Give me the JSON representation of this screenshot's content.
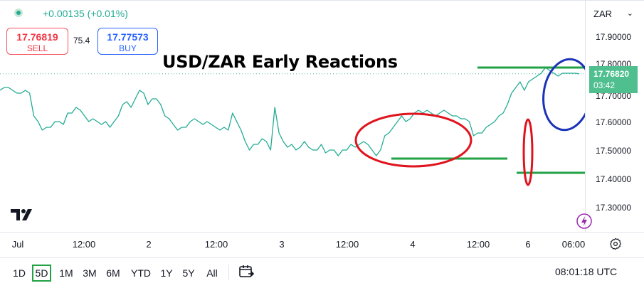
{
  "header": {
    "change": "+0.00135 (+0.01%)",
    "sell": {
      "price": "17.76819",
      "label": "SELL"
    },
    "buy": {
      "price": "17.77573",
      "label": "BUY"
    },
    "spread": "75.4",
    "currency": "ZAR"
  },
  "price_scale": {
    "labels": [
      "17.90000",
      "17.80000",
      "17.70000",
      "17.60000",
      "17.50000",
      "17.40000",
      "17.30000"
    ],
    "current_price": "17.76820",
    "countdown": "03:42"
  },
  "time_axis": [
    "Jul",
    "12:00",
    "2",
    "12:00",
    "3",
    "12:00",
    "4",
    "12:00",
    "6",
    "06:00"
  ],
  "toolbar": {
    "ranges": [
      "1D",
      "5D",
      "1M",
      "3M",
      "6M",
      "YTD",
      "1Y",
      "5Y",
      "All"
    ],
    "active_range": "5D",
    "clock": "08:01:18 UTC"
  },
  "chart_data": {
    "type": "line",
    "title": "USD/ZAR Early Reactions",
    "xlabel": "",
    "ylabel": "",
    "ylim": [
      17.25,
      17.95
    ],
    "x_ticks": [
      "Jul",
      "12:00",
      "2",
      "12:00",
      "3",
      "12:00",
      "4",
      "12:00",
      "6",
      "06:00"
    ],
    "y_ticks": [
      17.3,
      17.4,
      17.5,
      17.6,
      17.7,
      17.8,
      17.9
    ],
    "grid": false,
    "line_color": "#22ab94",
    "series": [
      {
        "x": [
          0,
          0.3,
          0.6,
          0.9,
          1.2,
          1.5,
          1.8,
          2.1,
          2.4,
          2.7,
          3.0,
          3.3,
          3.6,
          3.9,
          4.2,
          4.5,
          4.8,
          5.1,
          5.4,
          5.7,
          6.0,
          6.3,
          6.6,
          6.9,
          7.2,
          7.5,
          7.8,
          8.1,
          8.4,
          8.7,
          9.0,
          9.3,
          9.6,
          9.9,
          10.2,
          10.5,
          10.8,
          11.1,
          11.4,
          11.7,
          12.0,
          12.3,
          12.6,
          12.9,
          13.2,
          13.5,
          13.8,
          14.1,
          14.4,
          14.7,
          15.0,
          15.3,
          15.6,
          15.9,
          16.2,
          16.5,
          16.8,
          17.1,
          17.4,
          17.7,
          18.0,
          18.3,
          18.6,
          18.9,
          19.2,
          19.5,
          19.8,
          20.1,
          20.4,
          20.7,
          21.0,
          21.3,
          21.6,
          21.9,
          22.2,
          22.5,
          22.8,
          23.1,
          23.4,
          23.7,
          24.0,
          24.3,
          24.6,
          24.9,
          25.2,
          25.5,
          25.8,
          26.1,
          26.4,
          26.7,
          27.0,
          27.3,
          27.6,
          27.9,
          28.2,
          28.5,
          28.8,
          29.1,
          29.4,
          29.7,
          30.0,
          30.3,
          30.6,
          30.9,
          31.2,
          31.5,
          31.8,
          32.1,
          32.4,
          32.7,
          33.0,
          33.3,
          33.6,
          33.9,
          34.2,
          34.5,
          34.8,
          35.1,
          35.4,
          35.7,
          36.0,
          36.3,
          36.6,
          36.9,
          37.2,
          37.5,
          37.8,
          38.1,
          38.4,
          38.7,
          39.0,
          39.3,
          39.6,
          39.9,
          40.2,
          40.5,
          40.8,
          41.1
        ],
        "values": [
          17.71,
          17.72,
          17.72,
          17.71,
          17.7,
          17.7,
          17.71,
          17.7,
          17.62,
          17.6,
          17.57,
          17.58,
          17.58,
          17.6,
          17.6,
          17.59,
          17.63,
          17.63,
          17.65,
          17.64,
          17.62,
          17.6,
          17.61,
          17.6,
          17.59,
          17.6,
          17.58,
          17.6,
          17.62,
          17.66,
          17.67,
          17.65,
          17.68,
          17.71,
          17.7,
          17.66,
          17.68,
          17.68,
          17.66,
          17.62,
          17.61,
          17.59,
          17.57,
          17.58,
          17.58,
          17.6,
          17.61,
          17.6,
          17.59,
          17.6,
          17.59,
          17.58,
          17.57,
          17.58,
          17.57,
          17.63,
          17.6,
          17.57,
          17.53,
          17.5,
          17.52,
          17.52,
          17.54,
          17.53,
          17.5,
          17.65,
          17.56,
          17.53,
          17.51,
          17.52,
          17.5,
          17.51,
          17.53,
          17.51,
          17.5,
          17.5,
          17.52,
          17.49,
          17.5,
          17.5,
          17.48,
          17.5,
          17.5,
          17.52,
          17.51,
          17.52,
          17.53,
          17.52,
          17.5,
          17.48,
          17.5,
          17.55,
          17.56,
          17.58,
          17.6,
          17.62,
          17.6,
          17.61,
          17.63,
          17.64,
          17.63,
          17.64,
          17.63,
          17.62,
          17.63,
          17.64,
          17.63,
          17.62,
          17.62,
          17.61,
          17.61,
          17.6,
          17.55,
          17.56,
          17.56,
          17.58,
          17.59,
          17.6,
          17.62,
          17.63,
          17.66,
          17.7,
          17.72,
          17.74,
          17.71,
          17.74,
          17.75,
          17.76,
          17.77,
          17.79,
          17.78,
          17.77,
          17.76,
          17.77,
          17.77,
          17.77,
          17.77,
          17.768
        ]
      }
    ],
    "annotations": {
      "green_levels": [
        {
          "value": 17.79
        },
        {
          "value": 17.47
        },
        {
          "value": 17.42
        }
      ],
      "red_ellipses": 2,
      "blue_ellipses": 1
    }
  }
}
